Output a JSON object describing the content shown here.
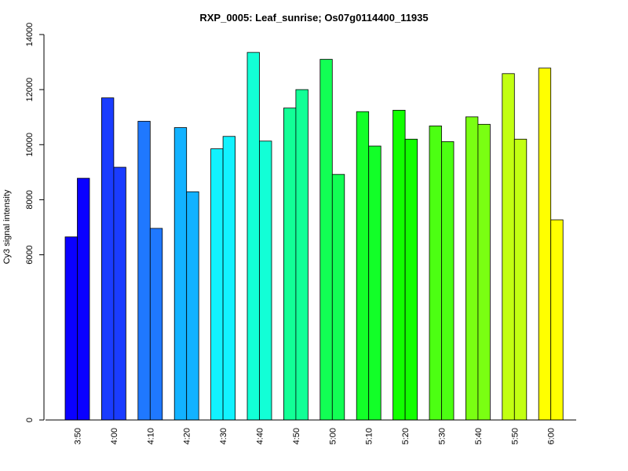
{
  "chart_data": {
    "type": "bar",
    "title": "RXP_0005: Leaf_sunrise; Os07g0114400_11935",
    "xlabel": "",
    "ylabel": "Cy3 signal intensity",
    "ylim": [
      0,
      14000
    ],
    "yticks": [
      0,
      6000,
      8000,
      10000,
      12000,
      14000
    ],
    "grid": false,
    "legend": "none",
    "categories": [
      "3:50",
      "4:00",
      "4:10",
      "4:20",
      "4:30",
      "4:40",
      "4:50",
      "5:00",
      "5:10",
      "5:20",
      "5:30",
      "5:40",
      "5:50",
      "6:00"
    ],
    "colors": [
      "#0A00FF",
      "#1A3CFF",
      "#1F78FF",
      "#12B2FF",
      "#12F2FF",
      "#12FFD6",
      "#12FF96",
      "#12FF54",
      "#12FF28",
      "#12FF00",
      "#4CFF12",
      "#7AFF12",
      "#C2FF12",
      "#FFFF00"
    ],
    "series": [
      {
        "values": [
          6650,
          11700,
          10850,
          10620,
          9850,
          13350,
          11330,
          13100,
          11200,
          11250,
          10680,
          11010,
          12580,
          12780
        ]
      },
      {
        "values": [
          8780,
          9180,
          6960,
          8290,
          10300,
          10130,
          12000,
          8920,
          9950,
          10200,
          10110,
          10740,
          10200,
          7270
        ]
      }
    ]
  }
}
